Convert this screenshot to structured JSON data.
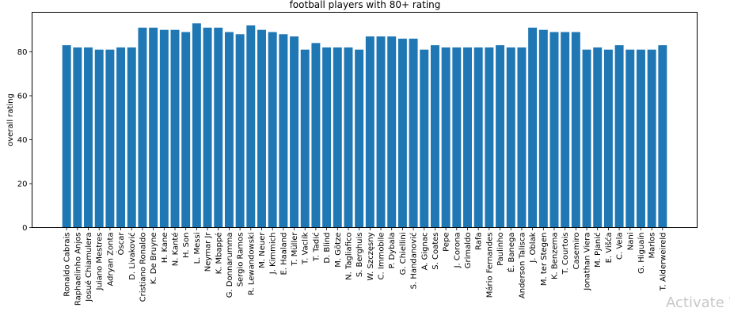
{
  "watermark": "Activate W",
  "chart_data": {
    "type": "bar",
    "title": "football players with 80+ rating",
    "xlabel": "",
    "ylabel": "overall rating",
    "ylim": [
      0,
      98
    ],
    "yticks": [
      0,
      20,
      40,
      60,
      80
    ],
    "grid": false,
    "bar_color": "#1f77b4",
    "categories": [
      "Ronaldo Cabrais",
      "Raphaelinho Anjos",
      "Josué Chiamulera",
      "Juiano Mestres",
      "Adryan Zonta",
      "Óscar",
      "D. Livaković",
      "Cristiano Ronaldo",
      "K. De Bruyne",
      "H. Kane",
      "N. Kanté",
      "H. Son",
      "L. Messi",
      "Neymar Jr",
      "K. Mbappé",
      "G. Donnarumma",
      "Sergio Ramos",
      "R. Lewandowski",
      "M. Neuer",
      "J. Kimmich",
      "E. Haaland",
      "T. Müller",
      "T. Vaclík",
      "T. Tadić",
      "D. Blind",
      "M. Götze",
      "N. Tagliafico",
      "S. Berghuis",
      "W. Szczęsny",
      "C. Immobile",
      "P. Dybala",
      "G. Chiellini",
      "S. Handanović",
      "A. Gignac",
      "S. Coates",
      "Pepe",
      "J. Corona",
      "Grimaldo",
      "Rafa",
      "Mário Fernandes",
      "Paulinho",
      "É. Banega",
      "Anderson Talisca",
      "J. Oblak",
      "M. ter Stegen",
      "K. Benzema",
      "T. Courtois",
      "Casemiro",
      "Jonathan Viera",
      "M. Pjanić",
      "E. Višća",
      "C. Vela",
      "Nani",
      "G. Higuaín",
      "Marlos",
      "T. Alderweireld"
    ],
    "values": [
      83,
      82,
      82,
      81,
      81,
      82,
      82,
      91,
      91,
      90,
      90,
      89,
      93,
      91,
      91,
      89,
      88,
      92,
      90,
      89,
      88,
      87,
      81,
      84,
      82,
      82,
      82,
      81,
      87,
      87,
      87,
      86,
      86,
      81,
      83,
      82,
      82,
      82,
      82,
      82,
      83,
      82,
      82,
      91,
      90,
      89,
      89,
      89,
      81,
      82,
      81,
      83,
      81,
      81,
      81,
      83
    ]
  }
}
